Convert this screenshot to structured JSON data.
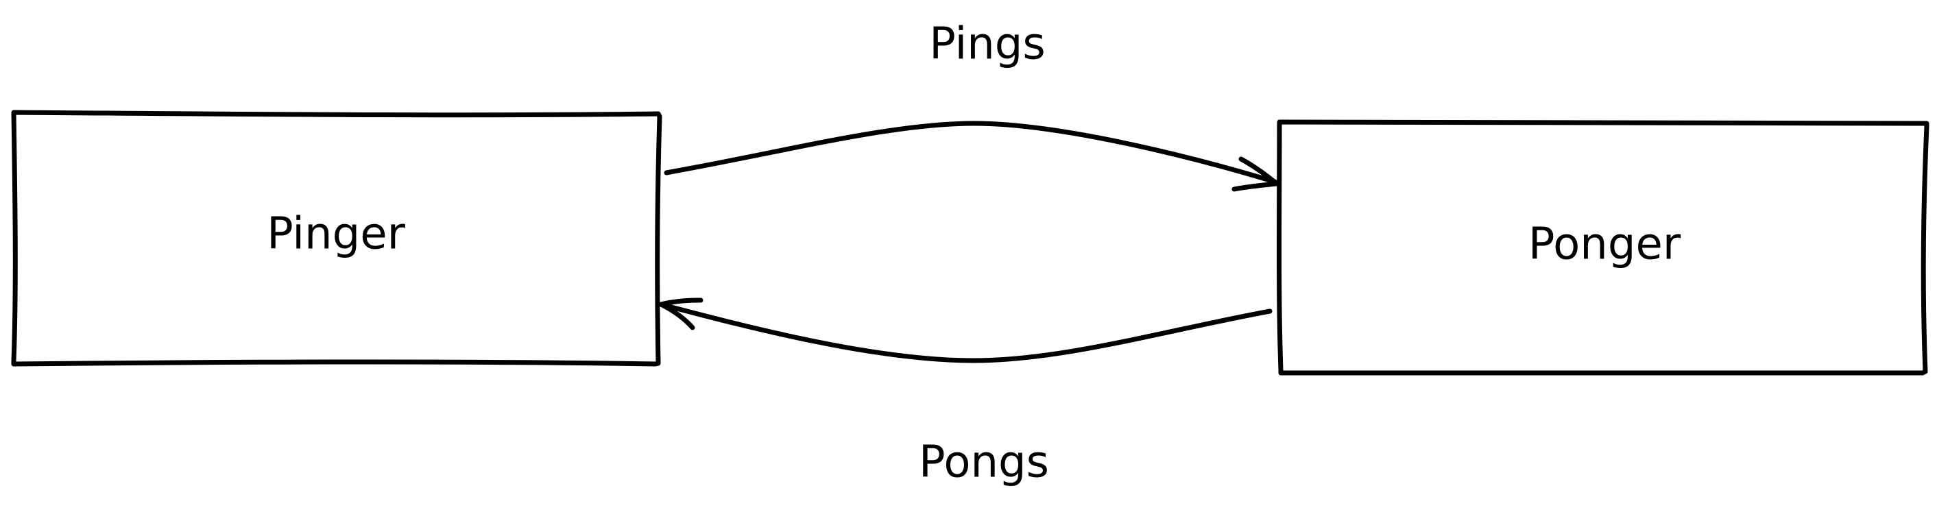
{
  "nodes": {
    "pinger": {
      "label": "Pinger"
    },
    "ponger": {
      "label": "Ponger"
    }
  },
  "edges": {
    "pings": {
      "label": "Pings",
      "from": "Pinger",
      "to": "Ponger"
    },
    "pongs": {
      "label": "Pongs",
      "from": "Ponger",
      "to": "Pinger"
    }
  },
  "colors": {
    "stroke": "#000000",
    "background": "#ffffff"
  }
}
